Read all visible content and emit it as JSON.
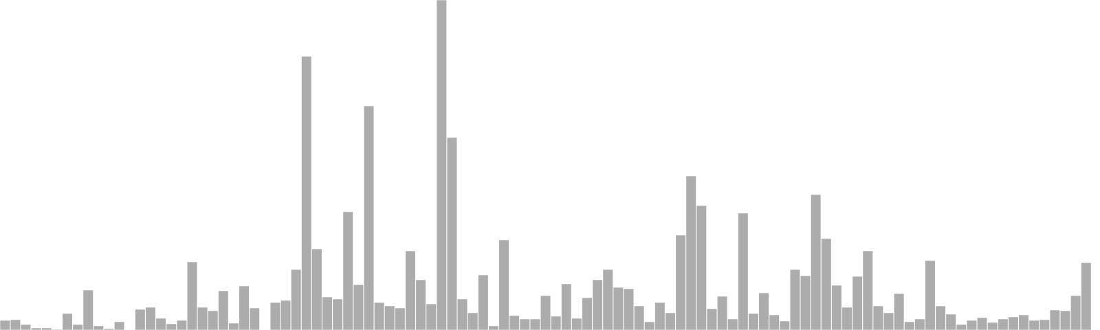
{
  "chart_data": {
    "type": "bar",
    "title": "",
    "xlabel": "",
    "ylabel": "",
    "ylim": [
      0,
      480
    ],
    "grid": false,
    "legend": "none",
    "bar_color": "#acacac",
    "bar_edge_color": "#ffffff",
    "values": [
      14,
      15,
      8,
      3,
      3,
      1,
      24,
      8,
      58,
      6,
      2,
      12,
      0,
      30,
      33,
      17,
      9,
      14,
      99,
      33,
      28,
      57,
      10,
      64,
      32,
      0,
      40,
      43,
      88,
      398,
      118,
      48,
      45,
      172,
      66,
      326,
      40,
      35,
      32,
      115,
      73,
      38,
      480,
      280,
      45,
      25,
      80,
      6,
      131,
      21,
      16,
      16,
      50,
      20,
      67,
      17,
      47,
      73,
      88,
      62,
      60,
      35,
      12,
      40,
      25,
      138,
      224,
      181,
      31,
      49,
      16,
      170,
      24,
      54,
      22,
      13,
      88,
      79,
      197,
      133,
      65,
      33,
      78,
      115,
      35,
      25,
      53,
      12,
      16,
      101,
      35,
      23,
      8,
      14,
      18,
      11,
      16,
      19,
      22,
      14,
      15,
      29,
      28,
      50,
      98
    ]
  }
}
